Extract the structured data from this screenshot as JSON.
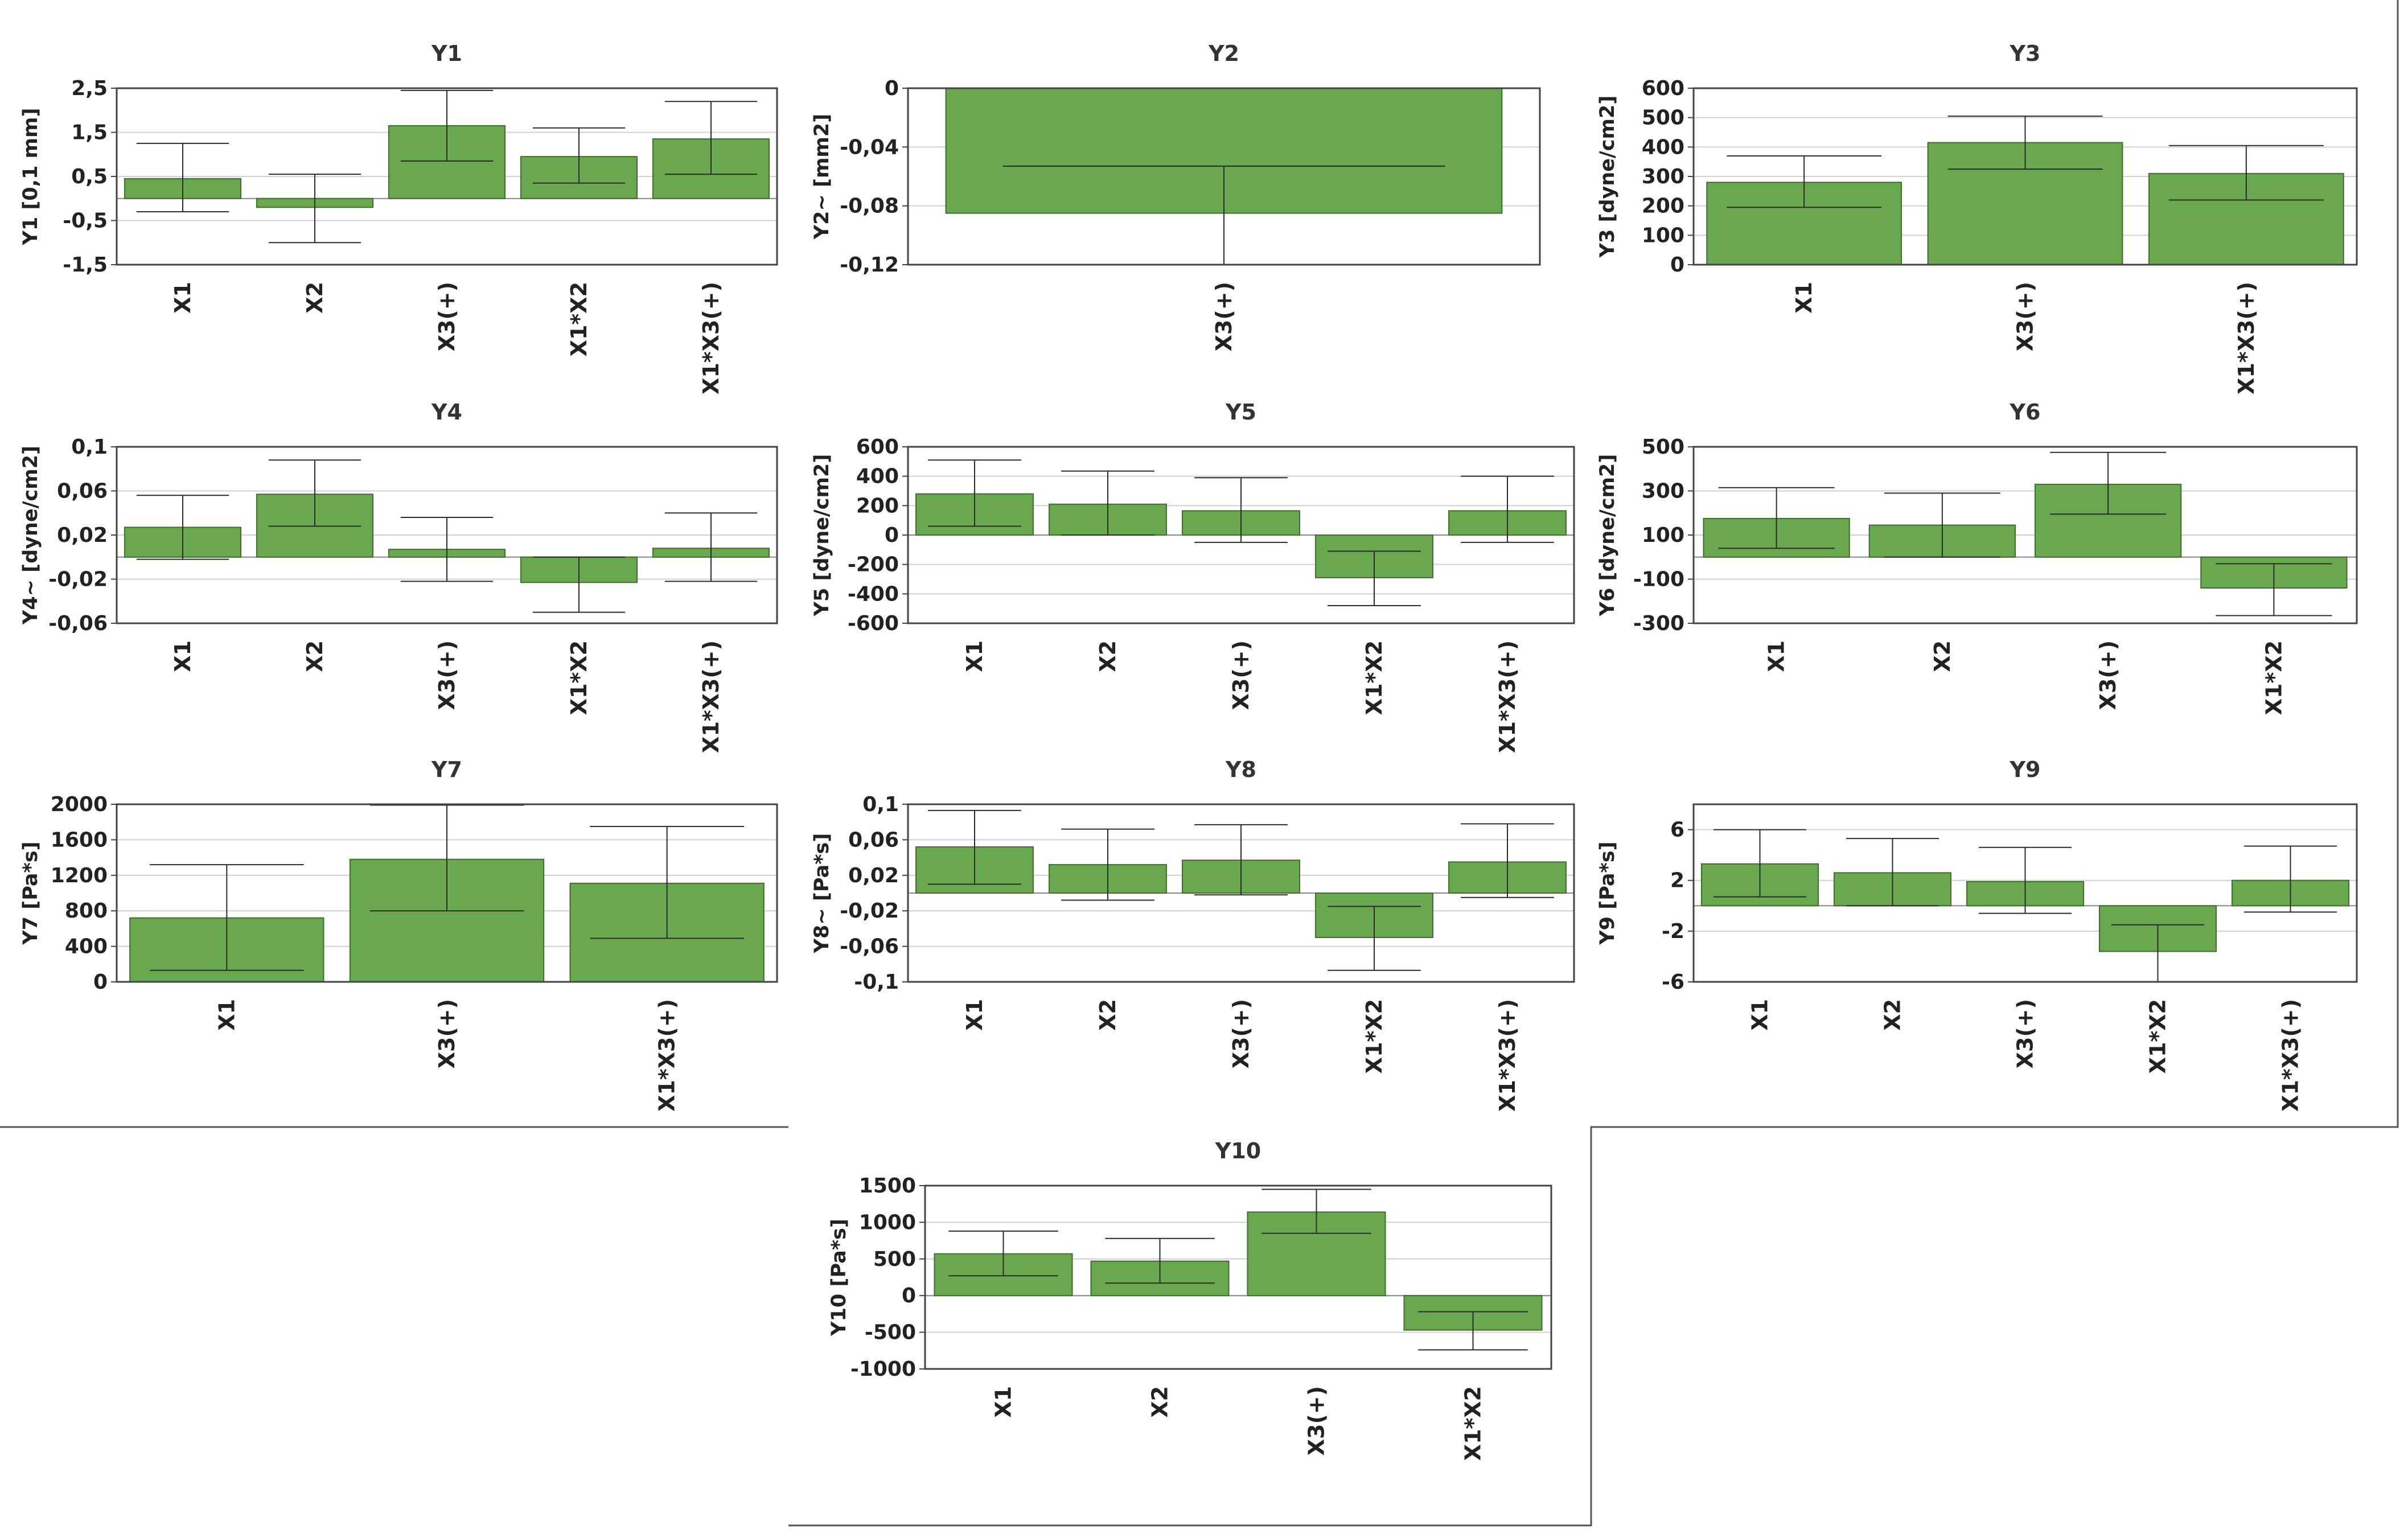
{
  "colors": {
    "bar": "#6aa84f",
    "bar_edge": "#3f6e2a",
    "error": "#2b2b2b",
    "grid": "#d0d0d0",
    "frame": "#444444"
  },
  "chart_data": [
    {
      "type": "bar",
      "title": "Y1",
      "ylabel": "Y1 [0,1 mm]",
      "ylim": [
        -1.5,
        2.5
      ],
      "yticks": [
        2.5,
        1.5,
        0.5,
        -0.5,
        -1.5
      ],
      "ytick_labels": [
        "2,5",
        "1,5",
        "0,5",
        "-0,5",
        "-1,5"
      ],
      "categories": [
        "X1",
        "X2",
        "X3(+)",
        "X1*X2",
        "X1*X3(+)"
      ],
      "values": [
        0.45,
        -0.2,
        1.65,
        0.95,
        1.35
      ],
      "err_low": [
        -0.3,
        -1.0,
        0.85,
        0.35,
        0.55
      ],
      "err_high": [
        1.25,
        0.55,
        2.45,
        1.6,
        2.2
      ]
    },
    {
      "type": "bar",
      "title": "Y2",
      "ylabel": "Y2~ [mm2]",
      "ylim": [
        -0.12,
        0
      ],
      "yticks": [
        0,
        -0.04,
        -0.08,
        -0.12
      ],
      "ytick_labels": [
        "0",
        "-0,04",
        "-0,08",
        "-0,12"
      ],
      "categories": [
        "X3(+)"
      ],
      "values": [
        -0.085
      ],
      "err_low": [
        -0.12
      ],
      "err_high": [
        -0.053
      ]
    },
    {
      "type": "bar",
      "title": "Y3",
      "ylabel": "Y3 [dyne/cm2]",
      "ylim": [
        0,
        600
      ],
      "yticks": [
        600,
        500,
        400,
        300,
        200,
        100,
        0
      ],
      "ytick_labels": [
        "600",
        "500",
        "400",
        "300",
        "200",
        "100",
        "0"
      ],
      "categories": [
        "X1",
        "X3(+)",
        "X1*X3(+)"
      ],
      "values": [
        280,
        415,
        310
      ],
      "err_low": [
        195,
        325,
        220
      ],
      "err_high": [
        370,
        505,
        405
      ]
    },
    {
      "type": "bar",
      "title": "Y4",
      "ylabel": "Y4~ [dyne/cm2]",
      "ylim": [
        -0.06,
        0.1
      ],
      "yticks": [
        0.1,
        0.06,
        0.02,
        -0.02,
        -0.06
      ],
      "ytick_labels": [
        "0,1",
        "0,06",
        "0,02",
        "-0,02",
        "-0,06"
      ],
      "categories": [
        "X1",
        "X2",
        "X3(+)",
        "X1*X2",
        "X1*X3(+)"
      ],
      "values": [
        0.027,
        0.057,
        0.007,
        -0.023,
        0.008
      ],
      "err_low": [
        -0.002,
        0.028,
        -0.022,
        -0.05,
        -0.022
      ],
      "err_high": [
        0.056,
        0.088,
        0.036,
        0.0,
        0.04
      ]
    },
    {
      "type": "bar",
      "title": "Y5",
      "ylabel": "Y5 [dyne/cm2]",
      "ylim": [
        -600,
        600
      ],
      "yticks": [
        600,
        400,
        200,
        0,
        -200,
        -400,
        -600
      ],
      "ytick_labels": [
        "600",
        "400",
        "200",
        "0",
        "-200",
        "-400",
        "-600"
      ],
      "categories": [
        "X1",
        "X2",
        "X3(+)",
        "X1*X2",
        "X1*X3(+)"
      ],
      "values": [
        280,
        210,
        165,
        -290,
        165
      ],
      "err_low": [
        60,
        0,
        -50,
        -480,
        -50
      ],
      "err_high": [
        510,
        435,
        390,
        -110,
        400
      ]
    },
    {
      "type": "bar",
      "title": "Y6",
      "ylabel": "Y6 [dyne/cm2]",
      "ylim": [
        -300,
        500
      ],
      "yticks": [
        500,
        300,
        100,
        -100,
        -300
      ],
      "ytick_labels": [
        "500",
        "300",
        "100",
        "-100",
        "-300"
      ],
      "categories": [
        "X1",
        "X2",
        "X3(+)",
        "X1*X2"
      ],
      "values": [
        175,
        145,
        330,
        -140
      ],
      "err_low": [
        40,
        0,
        195,
        -265
      ],
      "err_high": [
        315,
        290,
        475,
        -30
      ]
    },
    {
      "type": "bar",
      "title": "Y7",
      "ylabel": "Y7 [Pa*s]",
      "ylim": [
        0,
        2000
      ],
      "yticks": [
        2000,
        1600,
        1200,
        800,
        400,
        0
      ],
      "ytick_labels": [
        "2000",
        "1600",
        "1200",
        "800",
        "400",
        "0"
      ],
      "categories": [
        "X1",
        "X3(+)",
        "X1*X3(+)"
      ],
      "values": [
        720,
        1380,
        1110
      ],
      "err_low": [
        130,
        800,
        490
      ],
      "err_high": [
        1320,
        1990,
        1750
      ]
    },
    {
      "type": "bar",
      "title": "Y8",
      "ylabel": "Y8~ [Pa*s]",
      "ylim": [
        -0.1,
        0.1
      ],
      "yticks": [
        0.1,
        0.06,
        0.02,
        -0.02,
        -0.06,
        -0.1
      ],
      "ytick_labels": [
        "0,1",
        "0,06",
        "0,02",
        "-0,02",
        "-0,06",
        "-0,1"
      ],
      "categories": [
        "X1",
        "X2",
        "X3(+)",
        "X1*X2",
        "X1*X3(+)"
      ],
      "values": [
        0.052,
        0.032,
        0.037,
        -0.05,
        0.035
      ],
      "err_low": [
        0.01,
        -0.008,
        -0.002,
        -0.087,
        -0.005
      ],
      "err_high": [
        0.093,
        0.072,
        0.077,
        -0.015,
        0.078
      ]
    },
    {
      "type": "bar",
      "title": "Y9",
      "ylabel": "Y9 [Pa*s]",
      "ylim": [
        -6,
        8
      ],
      "yticks": [
        6,
        2,
        -2,
        -6
      ],
      "ytick_labels": [
        "6",
        "2",
        "-2",
        "-6"
      ],
      "categories": [
        "X1",
        "X2",
        "X3(+)",
        "X1*X2",
        "X1*X3(+)"
      ],
      "values": [
        3.3,
        2.6,
        1.9,
        -3.6,
        2.0
      ],
      "err_low": [
        0.7,
        0.0,
        -0.6,
        -6.0,
        -0.5
      ],
      "err_high": [
        6.0,
        5.3,
        4.6,
        -1.5,
        4.7
      ]
    },
    {
      "type": "bar",
      "title": "Y10",
      "ylabel": "Y10 [Pa*s]",
      "ylim": [
        -1000,
        1500
      ],
      "yticks": [
        1500,
        1000,
        500,
        0,
        -500,
        -1000
      ],
      "ytick_labels": [
        "1500",
        "1000",
        "500",
        "0",
        "-500",
        "-1000"
      ],
      "categories": [
        "X1",
        "X2",
        "X3(+)",
        "X1*X2"
      ],
      "values": [
        570,
        470,
        1140,
        -470
      ],
      "err_low": [
        270,
        170,
        850,
        -740
      ],
      "err_high": [
        880,
        780,
        1450,
        -220
      ]
    }
  ]
}
